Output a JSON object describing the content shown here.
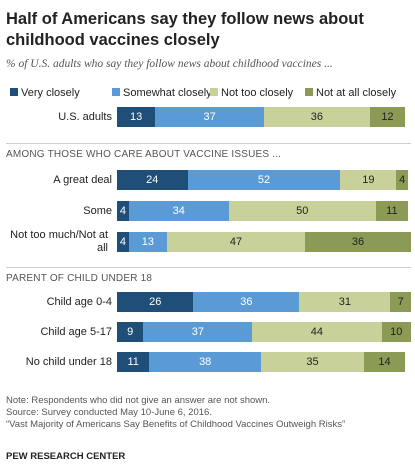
{
  "title": "Half of Americans say they follow news about childhood vaccines closely",
  "subtitle": "% of U.S. adults who say they follow news about childhood vaccines ...",
  "colors": {
    "very_closely": "#1f4e79",
    "somewhat_closely": "#5b9bd5",
    "not_too_closely": "#c9d19a",
    "not_at_all_closely": "#8b9a55"
  },
  "chart_data": {
    "type": "bar",
    "orientation": "horizontal",
    "stacked": true,
    "series_names": [
      "Very closely",
      "Somewhat closely",
      "Not too closely",
      "Not at all closely"
    ],
    "groups": [
      {
        "label": "",
        "rows": [
          {
            "label": "U.S. adults",
            "values": [
              13,
              37,
              36,
              12
            ]
          }
        ]
      },
      {
        "label": "AMONG THOSE WHO CARE ABOUT VACCINE ISSUES ...",
        "rows": [
          {
            "label": "A great deal",
            "values": [
              24,
              52,
              19,
              4
            ]
          },
          {
            "label": "Some",
            "values": [
              4,
              34,
              50,
              11
            ]
          },
          {
            "label": "Not too much/Not at all",
            "values": [
              4,
              13,
              47,
              36
            ]
          }
        ]
      },
      {
        "label": "PARENT OF CHILD UNDER 18",
        "rows": [
          {
            "label": "Child age 0-4",
            "values": [
              26,
              36,
              31,
              7
            ]
          },
          {
            "label": "Child age 5-17",
            "values": [
              9,
              37,
              44,
              10
            ]
          },
          {
            "label": "No child under 18",
            "values": [
              11,
              38,
              35,
              14
            ]
          }
        ]
      }
    ]
  },
  "footer": {
    "note": "Note: Respondents who did not give an answer are not shown.",
    "source": "Source: Survey conducted May 10-June 6, 2016.",
    "report": "“Vast Majority of Americans Say Benefits of Childhood Vaccines Outweigh Risks”",
    "org": "PEW RESEARCH CENTER"
  }
}
